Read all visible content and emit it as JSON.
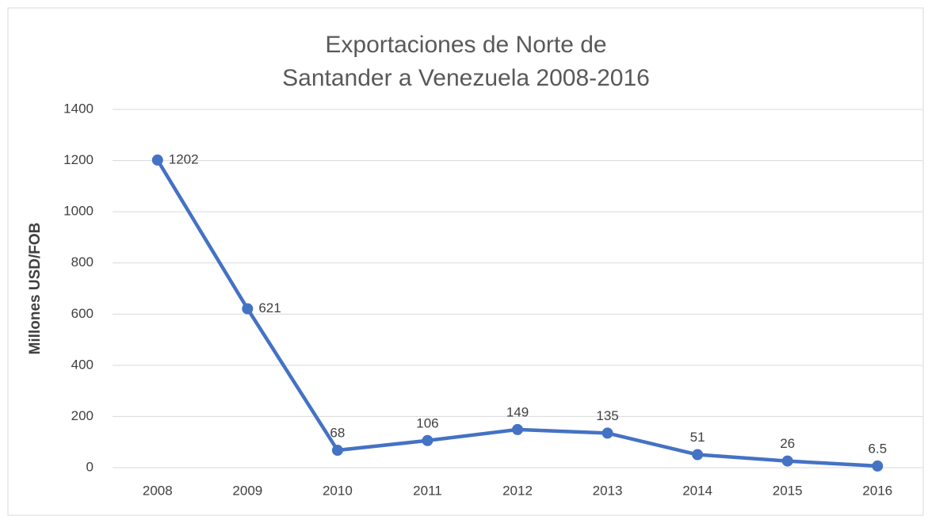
{
  "chart_data": {
    "type": "line",
    "title": "Exportaciones de Norte de Santander a Venezuela 2008-2016",
    "y_label": "Millones USD/FOB",
    "categories": [
      "2008",
      "2009",
      "2010",
      "2011",
      "2012",
      "2013",
      "2014",
      "2015",
      "2016"
    ],
    "values": [
      1202,
      621,
      68,
      106,
      149,
      135,
      51,
      26,
      6.5
    ],
    "color": "#4472c4",
    "ylim": [
      0,
      1400
    ],
    "yticks": [
      0,
      200,
      400,
      600,
      800,
      1000,
      1200,
      1400
    ],
    "grid": true
  }
}
